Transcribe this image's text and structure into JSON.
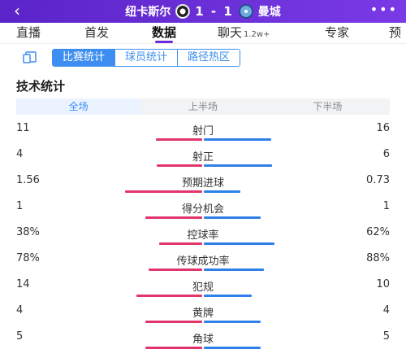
{
  "header": {
    "home_team": "纽卡斯尔",
    "away_team": "曼城",
    "score": "1 - 1",
    "home_badge_icon": "newcastle-badge-icon",
    "away_badge_icon": "mancity-badge-icon",
    "back_icon": "chevron-left-icon",
    "more_icon": "more-dots-icon"
  },
  "tabs": [
    {
      "label": "直播",
      "active": false
    },
    {
      "label": "首发",
      "active": false
    },
    {
      "label": "数据",
      "active": true
    },
    {
      "label": "聊天",
      "sub": "1.2w+",
      "active": false
    },
    {
      "label": "专家",
      "active": false
    },
    {
      "label": "预",
      "active": false
    }
  ],
  "segments": [
    {
      "label": "比赛统计",
      "active": true
    },
    {
      "label": "球员统计",
      "active": false
    },
    {
      "label": "路径热区",
      "active": false
    }
  ],
  "section_title": "技术统计",
  "periods": [
    {
      "label": "全场",
      "active": true
    },
    {
      "label": "上半场",
      "active": false
    },
    {
      "label": "下半场",
      "active": false
    }
  ],
  "colors": {
    "home": "#e2356b",
    "away": "#2f7fe8",
    "accent": "#3d8ef0"
  },
  "stats": [
    {
      "label": "射门",
      "home": "11",
      "away": "16",
      "home_share": 0.41,
      "away_share": 0.59
    },
    {
      "label": "射正",
      "home": "4",
      "away": "6",
      "home_share": 0.4,
      "away_share": 0.6
    },
    {
      "label": "预期进球",
      "home": "1.56",
      "away": "0.73",
      "home_share": 0.68,
      "away_share": 0.32
    },
    {
      "label": "得分机会",
      "home": "1",
      "away": "1",
      "home_share": 0.5,
      "away_share": 0.5
    },
    {
      "label": "控球率",
      "home": "38%",
      "away": "62%",
      "home_share": 0.38,
      "away_share": 0.62
    },
    {
      "label": "传球成功率",
      "home": "78%",
      "away": "88%",
      "home_share": 0.47,
      "away_share": 0.53
    },
    {
      "label": "犯规",
      "home": "14",
      "away": "10",
      "home_share": 0.58,
      "away_share": 0.42
    },
    {
      "label": "黄牌",
      "home": "4",
      "away": "4",
      "home_share": 0.5,
      "away_share": 0.5
    },
    {
      "label": "角球",
      "home": "5",
      "away": "5",
      "home_share": 0.5,
      "away_share": 0.5
    }
  ]
}
